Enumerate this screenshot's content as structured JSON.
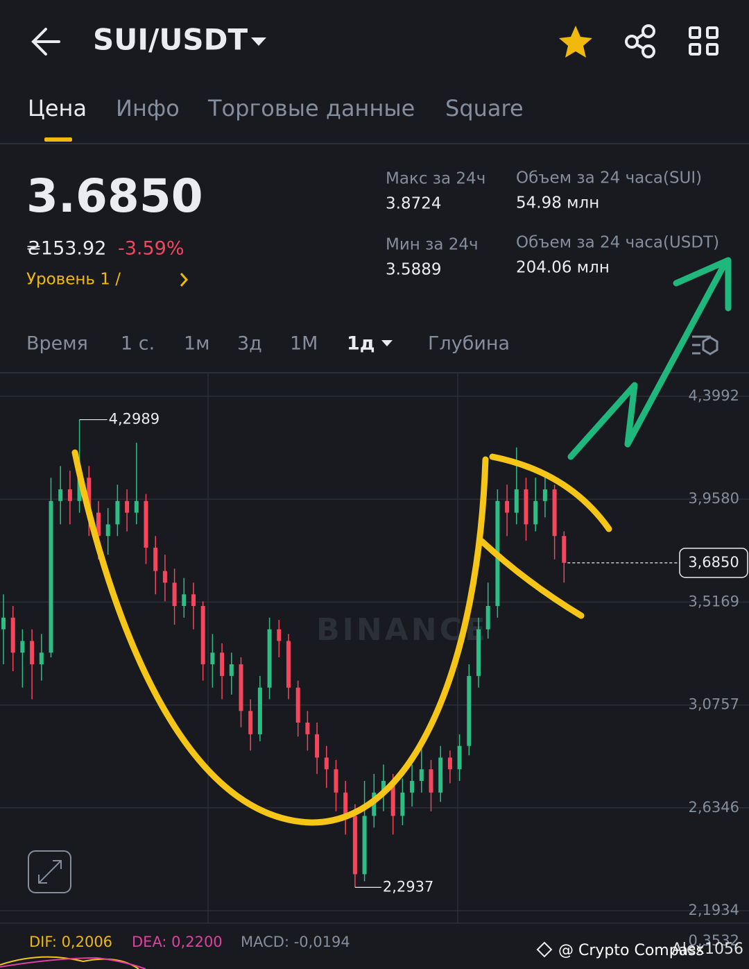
{
  "header": {
    "pair": "SUI/USDT"
  },
  "tabs": [
    "Цена",
    "Инфо",
    "Торговые данные",
    "Square"
  ],
  "ticker": {
    "price": "3.6850",
    "local_price": "₴153.92",
    "change": "-3.59%",
    "level": "Уровень 1 /",
    "stats": [
      {
        "label": "Макс за 24ч",
        "value": "3.8724"
      },
      {
        "label": "Объем за 24 часа(SUI)",
        "value": "54.98 млн"
      },
      {
        "label": "Мин за 24ч",
        "value": "3.5889"
      },
      {
        "label": "Объем за 24 часа(USDT)",
        "value": "204.06 млн"
      }
    ]
  },
  "timeframes": [
    "Время",
    "1 с.",
    "1м",
    "3д",
    "1М",
    "1д",
    "Глубина"
  ],
  "chart_data": {
    "type": "candlestick",
    "ylim": [
      2.14,
      4.5
    ],
    "yticks": [
      {
        "value": 4.3992,
        "label": "4,3992"
      },
      {
        "value": 3.958,
        "label": "3,9580"
      },
      {
        "value": 3.5169,
        "label": "3,5169"
      },
      {
        "value": 3.0757,
        "label": "3,0757"
      },
      {
        "value": 2.6346,
        "label": "2,6346"
      },
      {
        "value": 2.1934,
        "label": "2,1934"
      }
    ],
    "grid": true,
    "up_color": "#2ebd85",
    "down_color": "#f6465d",
    "open": [
      3.4,
      3.45,
      3.3,
      3.35,
      3.25,
      3.3,
      3.95,
      4.0,
      3.95,
      4.05,
      3.9,
      3.8,
      3.85,
      3.95,
      3.9,
      3.95,
      3.75,
      3.65,
      3.6,
      3.5,
      3.55,
      3.5,
      3.25,
      3.3,
      3.2,
      3.25,
      3.05,
      2.95,
      3.15,
      3.4,
      3.35,
      3.15,
      3.0,
      2.95,
      2.85,
      2.8,
      2.7,
      2.6,
      2.35,
      2.6,
      2.7,
      2.75,
      2.6,
      2.7,
      2.75,
      2.8,
      2.7,
      2.85,
      2.8,
      2.9,
      3.2,
      3.4,
      3.5,
      3.95,
      3.9,
      4.0,
      3.85,
      3.95,
      4.0,
      3.8
    ],
    "high": [
      3.55,
      3.5,
      3.4,
      3.4,
      3.38,
      4.05,
      4.1,
      4.08,
      4.2989,
      4.1,
      3.95,
      3.92,
      4.02,
      4.0,
      4.2,
      3.98,
      3.8,
      3.72,
      3.66,
      3.62,
      3.6,
      3.52,
      3.38,
      3.34,
      3.3,
      3.28,
      3.1,
      3.2,
      3.45,
      3.44,
      3.38,
      3.18,
      3.05,
      3.0,
      2.9,
      2.84,
      2.75,
      2.65,
      2.75,
      2.78,
      2.82,
      2.78,
      2.76,
      2.82,
      2.92,
      2.84,
      2.9,
      2.88,
      2.95,
      3.25,
      3.45,
      3.6,
      4.0,
      4.02,
      4.18,
      4.05,
      4.05,
      4.06,
      4.02,
      3.82
    ],
    "low": [
      3.25,
      3.22,
      3.15,
      3.1,
      3.18,
      3.28,
      3.85,
      3.85,
      3.9,
      3.8,
      3.7,
      3.72,
      3.8,
      3.82,
      3.85,
      3.68,
      3.55,
      3.52,
      3.42,
      3.45,
      3.4,
      3.18,
      3.15,
      3.1,
      3.12,
      2.98,
      2.88,
      2.92,
      3.1,
      3.28,
      3.1,
      2.94,
      2.88,
      2.78,
      2.72,
      2.62,
      2.52,
      2.2937,
      2.32,
      2.55,
      2.62,
      2.52,
      2.56,
      2.64,
      2.7,
      2.62,
      2.66,
      2.74,
      2.75,
      2.86,
      3.15,
      3.36,
      3.45,
      3.8,
      3.85,
      3.78,
      3.82,
      3.88,
      3.7,
      3.6
    ],
    "close": [
      3.45,
      3.3,
      3.35,
      3.25,
      3.3,
      3.95,
      4.0,
      3.95,
      4.05,
      3.9,
      3.8,
      3.85,
      3.95,
      3.9,
      3.95,
      3.75,
      3.65,
      3.6,
      3.5,
      3.55,
      3.5,
      3.25,
      3.3,
      3.2,
      3.25,
      3.05,
      2.95,
      3.15,
      3.4,
      3.35,
      3.15,
      3.0,
      2.95,
      2.85,
      2.8,
      2.7,
      2.6,
      2.35,
      2.6,
      2.7,
      2.75,
      2.6,
      2.7,
      2.75,
      2.8,
      2.7,
      2.85,
      2.8,
      2.9,
      3.2,
      3.4,
      3.5,
      3.95,
      3.9,
      4.0,
      3.85,
      3.95,
      4.0,
      3.8,
      3.685
    ],
    "high_marker": {
      "value": 4.2989,
      "label": "4,2989"
    },
    "low_marker": {
      "value": 2.2937,
      "label": "2,2937"
    },
    "last_price": {
      "value": 3.685,
      "label": "3,6850"
    },
    "watermark": "BINANCE"
  },
  "macd": {
    "dif": "DIF: 0,2006",
    "dea": "DEA: 0,2200",
    "macd": "MACD: -0,0194",
    "axis_top": "0,3532"
  },
  "credits": {
    "author": "@ Crypto Compass",
    "handle": "Alex1056"
  }
}
